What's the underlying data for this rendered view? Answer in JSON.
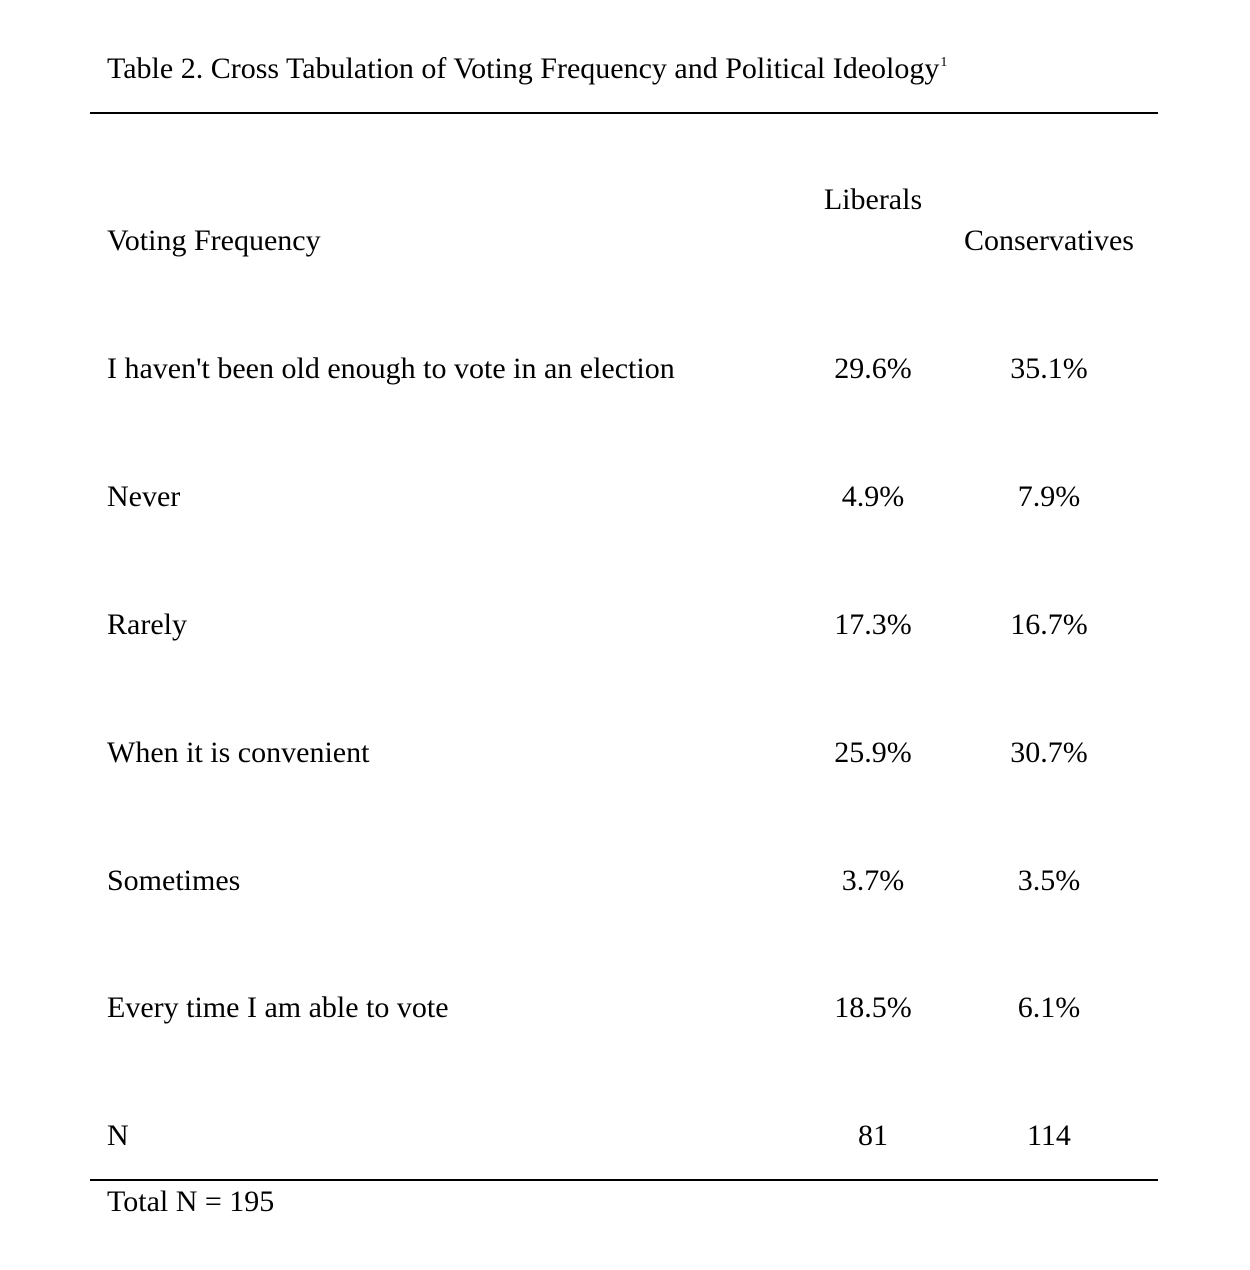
{
  "table": {
    "title": "Table 2. Cross Tabulation of Voting Frequency and Political Ideology",
    "title_superscript": "1",
    "headers": {
      "row_label": "Voting Frequency",
      "liberals": "Liberals",
      "conservatives": "Conservatives"
    },
    "rows": [
      {
        "label": "I haven't been old enough to vote in an election",
        "liberals": "29.6%",
        "conservatives": "35.1%"
      },
      {
        "label": "Never",
        "liberals": "4.9%",
        "conservatives": "7.9%"
      },
      {
        "label": "Rarely",
        "liberals": "17.3%",
        "conservatives": "16.7%"
      },
      {
        "label": "When it is convenient",
        "liberals": "25.9%",
        "conservatives": "30.7%"
      },
      {
        "label": "Sometimes",
        "liberals": "3.7%",
        "conservatives": "3.5%"
      },
      {
        "label": "Every time I am able to vote",
        "liberals": "18.5%",
        "conservatives": "6.1%"
      },
      {
        "label": "N",
        "liberals": "81",
        "conservatives": "114"
      }
    ],
    "footer": "Total N = 195"
  }
}
